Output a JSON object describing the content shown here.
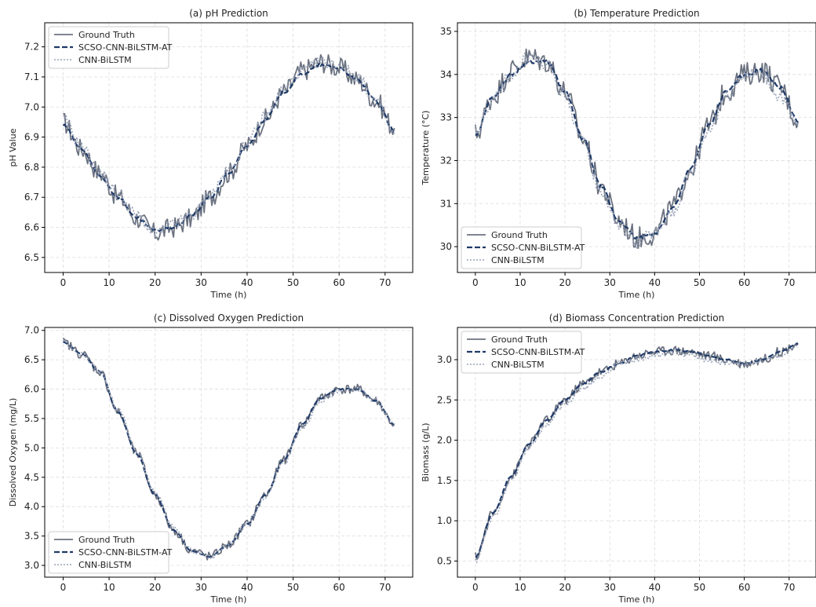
{
  "chart_data": [
    {
      "type": "line",
      "title": "(a) pH Prediction",
      "xlabel": "Time (h)",
      "ylabel": "pH Value",
      "xlim": [
        -4,
        76
      ],
      "ylim": [
        6.45,
        7.28
      ],
      "xticks": [
        0,
        10,
        20,
        30,
        40,
        50,
        60,
        70
      ],
      "yticks": [
        6.5,
        6.6,
        6.7,
        6.8,
        6.9,
        7.0,
        7.1,
        7.2
      ],
      "ytick_decimals": 1,
      "grid": true,
      "legend_position": "top-left",
      "legend": [
        "Ground Truth",
        "SCSO-CNN-BiLSTM-AT",
        "CNN-BiLSTM"
      ],
      "x": [
        0,
        4,
        8,
        12,
        16,
        20,
        24,
        28,
        32,
        36,
        40,
        44,
        48,
        52,
        56,
        60,
        64,
        68,
        72
      ],
      "series": [
        {
          "name": "Ground Truth",
          "values": [
            6.95,
            6.86,
            6.78,
            6.7,
            6.63,
            6.58,
            6.6,
            6.63,
            6.7,
            6.78,
            6.87,
            6.96,
            7.05,
            7.12,
            7.15,
            7.13,
            7.09,
            7.02,
            6.93
          ]
        },
        {
          "name": "SCSO-CNN-BiLSTM-AT",
          "values": [
            6.94,
            6.86,
            6.77,
            6.7,
            6.63,
            6.59,
            6.6,
            6.64,
            6.7,
            6.78,
            6.87,
            6.96,
            7.05,
            7.11,
            7.14,
            7.13,
            7.09,
            7.02,
            6.92
          ]
        },
        {
          "name": "CNN-BiLSTM",
          "values": [
            6.96,
            6.87,
            6.78,
            6.71,
            6.64,
            6.58,
            6.61,
            6.64,
            6.71,
            6.79,
            6.88,
            6.97,
            7.06,
            7.12,
            7.15,
            7.14,
            7.1,
            7.02,
            6.91
          ]
        }
      ]
    },
    {
      "type": "line",
      "title": "(b) Temperature Prediction",
      "xlabel": "Time (h)",
      "ylabel": "Temperature (°C)",
      "xlim": [
        -4,
        76
      ],
      "ylim": [
        29.4,
        35.2
      ],
      "xticks": [
        0,
        10,
        20,
        30,
        40,
        50,
        60,
        70
      ],
      "yticks": [
        30,
        31,
        32,
        33,
        34,
        35
      ],
      "ytick_decimals": 0,
      "grid": true,
      "legend_position": "bottom-left",
      "legend": [
        "Ground Truth",
        "SCSO-CNN-BiLSTM-AT",
        "CNN-BiLSTM"
      ],
      "x": [
        0,
        4,
        8,
        12,
        16,
        20,
        24,
        28,
        32,
        36,
        40,
        44,
        48,
        52,
        56,
        60,
        64,
        68,
        72
      ],
      "series": [
        {
          "name": "Ground Truth",
          "values": [
            32.6,
            33.5,
            34.1,
            34.4,
            34.3,
            33.6,
            32.5,
            31.4,
            30.6,
            30.2,
            30.3,
            30.9,
            31.8,
            32.8,
            33.6,
            34.0,
            34.1,
            33.7,
            32.9
          ]
        },
        {
          "name": "SCSO-CNN-BiLSTM-AT",
          "values": [
            32.6,
            33.5,
            34.0,
            34.3,
            34.3,
            33.6,
            32.5,
            31.4,
            30.6,
            30.2,
            30.3,
            30.9,
            31.8,
            32.8,
            33.6,
            34.0,
            34.1,
            33.7,
            32.9
          ]
        },
        {
          "name": "CNN-BiLSTM",
          "values": [
            32.7,
            33.4,
            34.0,
            34.4,
            34.2,
            33.5,
            32.4,
            31.3,
            30.5,
            30.1,
            30.3,
            30.8,
            31.7,
            32.7,
            33.5,
            34.0,
            34.0,
            33.5,
            32.8
          ]
        }
      ]
    },
    {
      "type": "line",
      "title": "(c) Dissolved Oxygen Prediction",
      "xlabel": "Time (h)",
      "ylabel": "Dissolved Oxygen (mg/L)",
      "xlim": [
        -4,
        76
      ],
      "ylim": [
        2.8,
        7.05
      ],
      "xticks": [
        0,
        10,
        20,
        30,
        40,
        50,
        60,
        70
      ],
      "yticks": [
        3.0,
        3.5,
        4.0,
        4.5,
        5.0,
        5.5,
        6.0,
        6.5,
        7.0
      ],
      "ytick_decimals": 1,
      "grid": true,
      "legend_position": "bottom-left",
      "legend": [
        "Ground Truth",
        "SCSO-CNN-BiLSTM-AT",
        "CNN-BiLSTM"
      ],
      "x": [
        0,
        4,
        8,
        12,
        16,
        20,
        24,
        28,
        32,
        36,
        40,
        44,
        48,
        52,
        56,
        60,
        64,
        68,
        72
      ],
      "series": [
        {
          "name": "Ground Truth",
          "values": [
            6.8,
            6.6,
            6.3,
            5.6,
            4.9,
            4.2,
            3.6,
            3.25,
            3.15,
            3.35,
            3.7,
            4.2,
            4.8,
            5.4,
            5.85,
            6.0,
            6.0,
            5.8,
            5.4
          ]
        },
        {
          "name": "SCSO-CNN-BiLSTM-AT",
          "values": [
            6.8,
            6.6,
            6.3,
            5.6,
            4.9,
            4.2,
            3.6,
            3.25,
            3.15,
            3.35,
            3.7,
            4.2,
            4.8,
            5.4,
            5.85,
            6.0,
            6.0,
            5.8,
            5.4
          ]
        },
        {
          "name": "CNN-BiLSTM",
          "values": [
            6.8,
            6.6,
            6.3,
            5.65,
            4.95,
            4.25,
            3.65,
            3.25,
            3.15,
            3.35,
            3.7,
            4.15,
            4.75,
            5.35,
            5.8,
            5.95,
            6.0,
            5.8,
            5.4
          ]
        }
      ]
    },
    {
      "type": "line",
      "title": "(d) Biomass Concentration Prediction",
      "xlabel": "Time (h)",
      "ylabel": "Biomass (g/L)",
      "xlim": [
        -4,
        76
      ],
      "ylim": [
        0.3,
        3.4
      ],
      "xticks": [
        0,
        10,
        20,
        30,
        40,
        50,
        60,
        70
      ],
      "yticks": [
        0.5,
        1.0,
        1.5,
        2.0,
        2.5,
        3.0
      ],
      "ytick_decimals": 1,
      "grid": true,
      "legend_position": "top-left",
      "legend": [
        "Ground Truth",
        "SCSO-CNN-BiLSTM-AT",
        "CNN-BiLSTM"
      ],
      "x": [
        0,
        4,
        8,
        12,
        16,
        20,
        24,
        28,
        32,
        36,
        40,
        44,
        48,
        52,
        56,
        60,
        64,
        68,
        72
      ],
      "series": [
        {
          "name": "Ground Truth",
          "values": [
            0.55,
            1.1,
            1.55,
            1.95,
            2.25,
            2.5,
            2.7,
            2.85,
            2.95,
            3.05,
            3.1,
            3.12,
            3.1,
            3.05,
            3.0,
            2.95,
            3.0,
            3.1,
            3.2
          ]
        },
        {
          "name": "SCSO-CNN-BiLSTM-AT",
          "values": [
            0.55,
            1.1,
            1.55,
            1.95,
            2.25,
            2.5,
            2.7,
            2.85,
            2.95,
            3.05,
            3.1,
            3.12,
            3.1,
            3.05,
            3.0,
            2.95,
            3.0,
            3.1,
            3.2
          ]
        },
        {
          "name": "CNN-BiLSTM",
          "values": [
            0.5,
            1.05,
            1.5,
            1.9,
            2.2,
            2.45,
            2.65,
            2.8,
            2.95,
            3.0,
            3.05,
            3.1,
            3.05,
            3.0,
            2.95,
            2.95,
            3.0,
            3.05,
            3.15
          ]
        }
      ]
    }
  ],
  "colors": {
    "ground_truth": "#6b7280",
    "scso": "#1f3a68",
    "cnn": "#9aa4b8",
    "grid": "#dcdcdc",
    "axis": "#000000"
  }
}
